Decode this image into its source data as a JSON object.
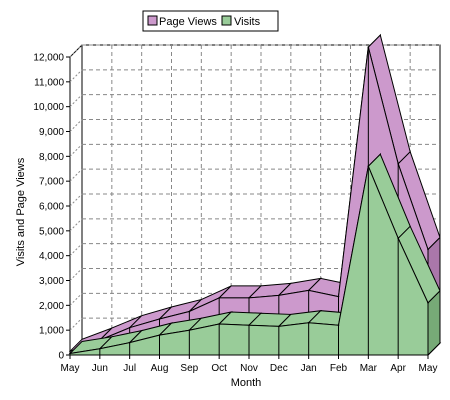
{
  "chart_data": {
    "type": "area",
    "categories": [
      "May",
      "Jun",
      "Jul",
      "Aug",
      "Sep",
      "Oct",
      "Nov",
      "Dec",
      "Jan",
      "Feb",
      "Mar",
      "Apr",
      "May"
    ],
    "series": [
      {
        "name": "Page Views",
        "color": "#cc99cc",
        "values": [
          150,
          600,
          1100,
          1450,
          1750,
          2300,
          2300,
          2400,
          2600,
          2350,
          12400,
          7700,
          4250
        ]
      },
      {
        "name": "Visits",
        "color": "#99cc99",
        "values": [
          60,
          250,
          500,
          800,
          1000,
          1250,
          1200,
          1150,
          1300,
          1200,
          7600,
          4700,
          2100
        ]
      }
    ],
    "xlabel": "Month",
    "ylabel": "Visits and Page Views",
    "ylim": [
      0,
      12000
    ],
    "yticks": [
      "0",
      "1,000",
      "2,000",
      "3,000",
      "4,000",
      "5,000",
      "6,000",
      "7,000",
      "8,000",
      "9,000",
      "10,000",
      "11,000",
      "12,000"
    ],
    "grid": true,
    "legend_position": "top-center",
    "style": "3d-stacked-area"
  }
}
